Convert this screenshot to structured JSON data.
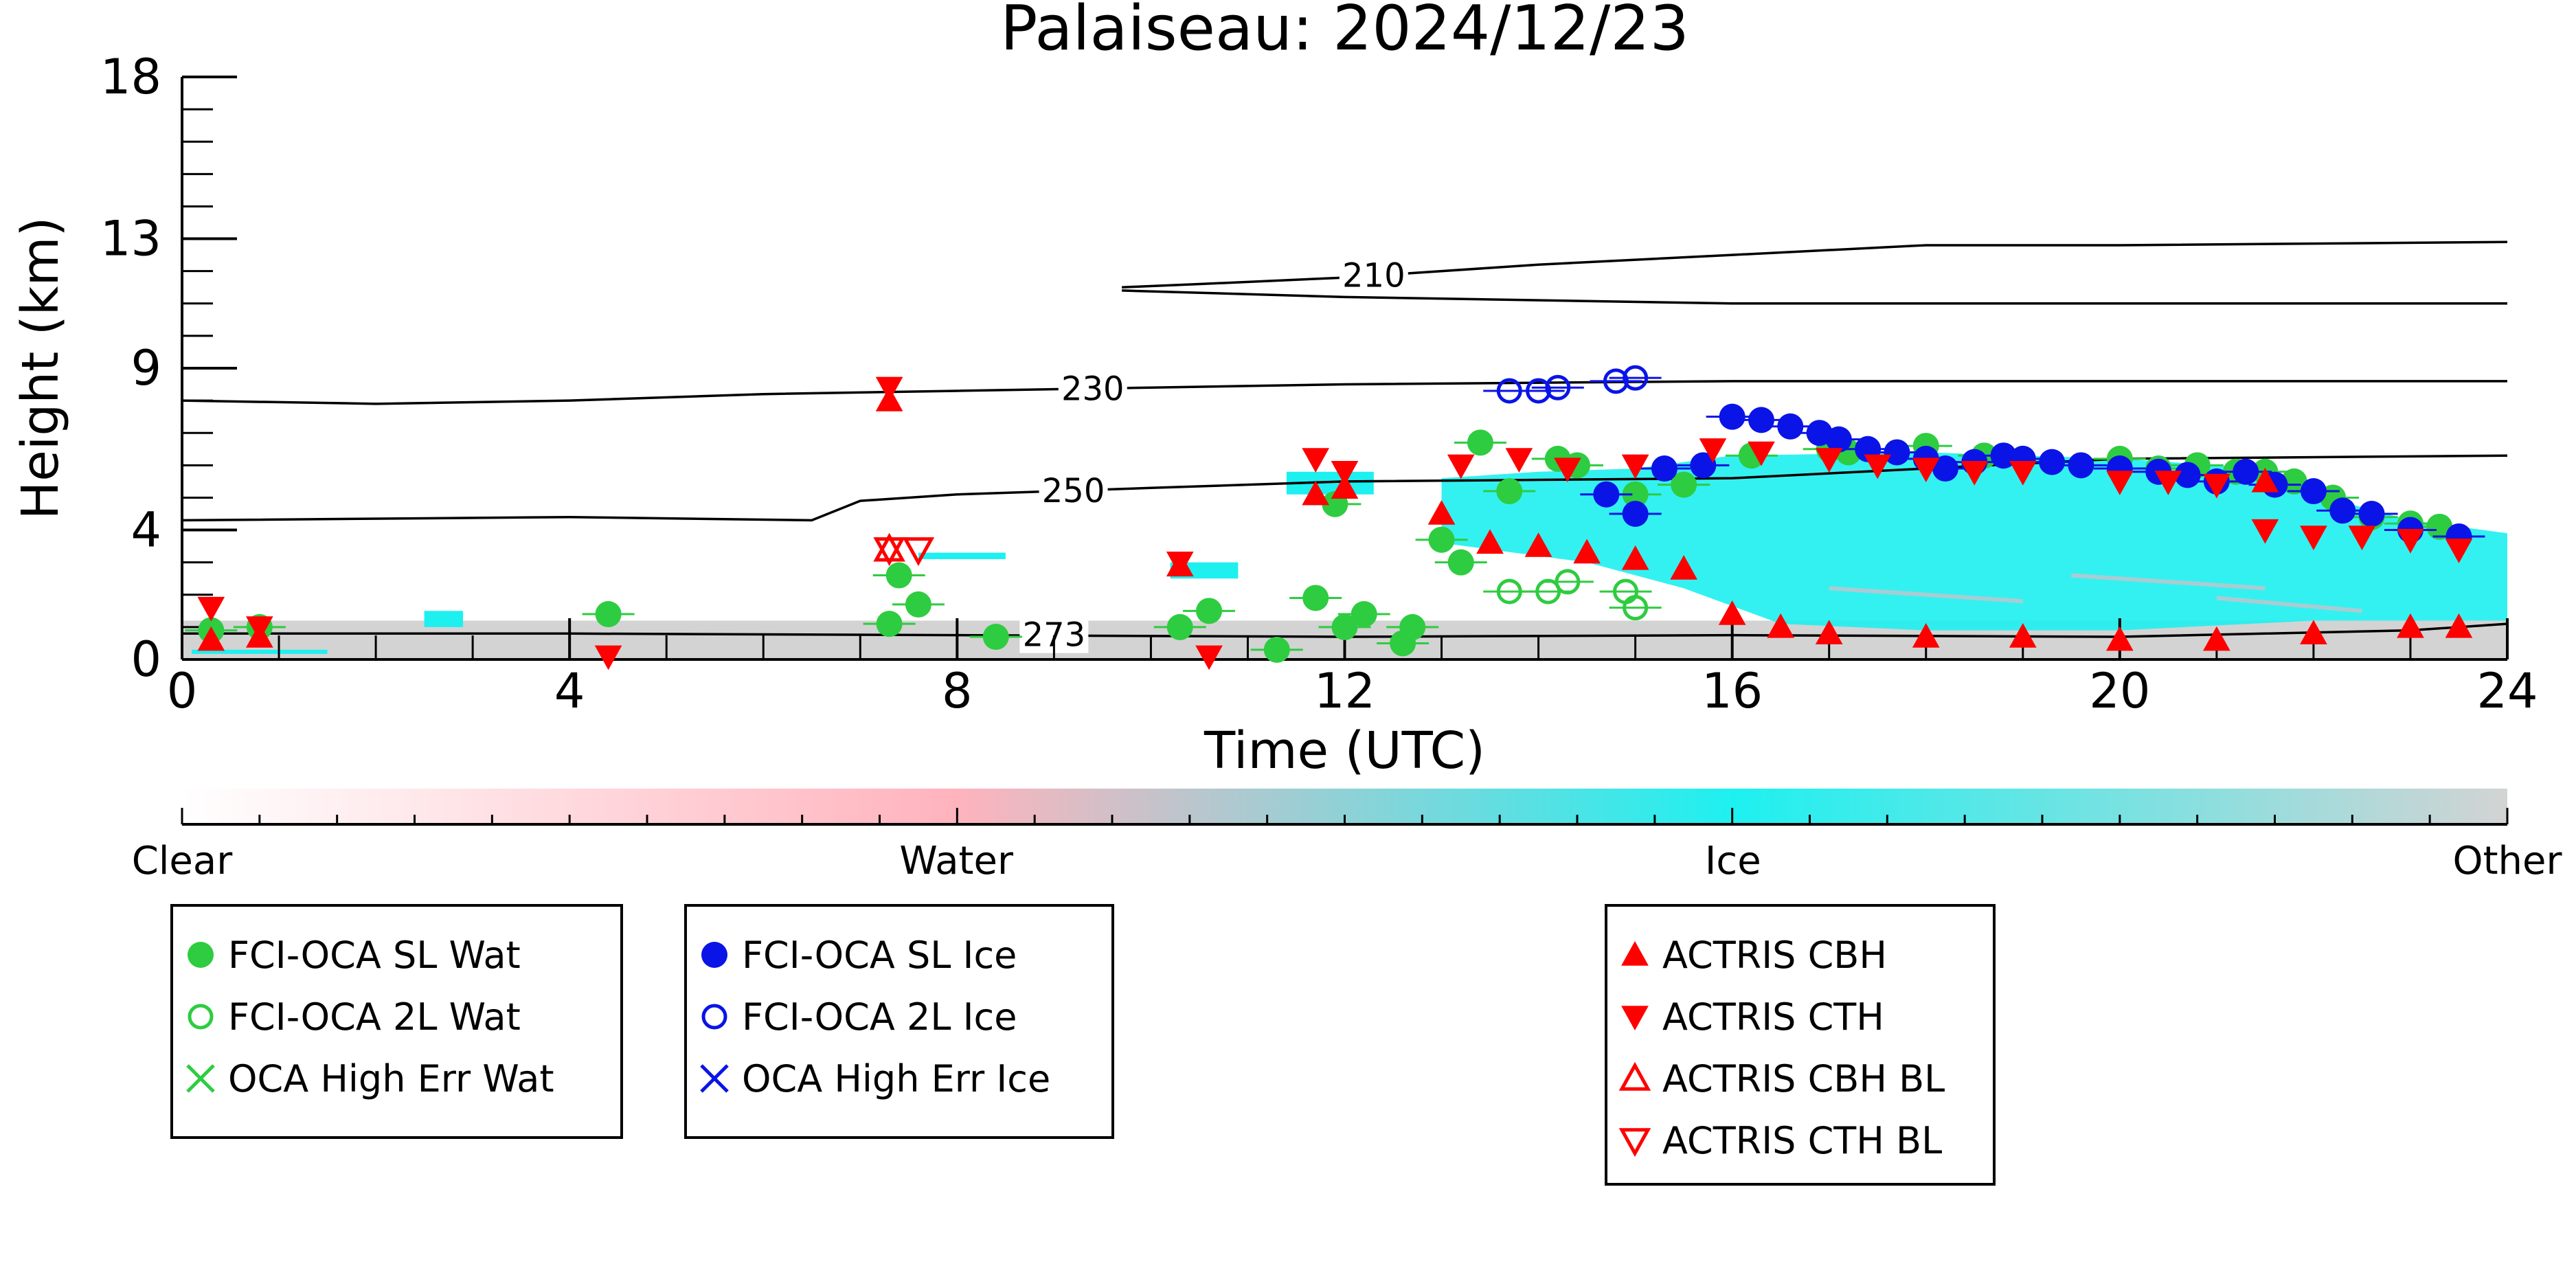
{
  "chart_data": {
    "type": "scatter",
    "title": "Palaiseau: 2024/12/23",
    "xlabel": "Time (UTC)",
    "ylabel": "Height (km)",
    "xlim": [
      0,
      24
    ],
    "ylim": [
      0,
      18
    ],
    "x_ticks": [
      0,
      4,
      8,
      12,
      16,
      20,
      24
    ],
    "y_ticks": [
      0,
      4,
      9,
      13,
      18
    ],
    "colorbar": {
      "labels": [
        "Clear",
        "Water",
        "Ice",
        "Other"
      ],
      "colors": [
        "#ffffff",
        "#ffb3bd",
        "#1ef0f0",
        "#d3d3d3"
      ]
    },
    "contours": [
      {
        "label": "273",
        "points": [
          [
            0,
            0.8
          ],
          [
            4,
            0.8
          ],
          [
            8,
            0.75
          ],
          [
            12,
            0.7
          ],
          [
            16,
            0.75
          ],
          [
            20,
            0.7
          ],
          [
            23,
            0.9
          ],
          [
            24,
            1.1
          ]
        ]
      },
      {
        "label": "250",
        "points": [
          [
            0,
            4.3
          ],
          [
            4,
            4.4
          ],
          [
            6.5,
            4.3
          ],
          [
            7,
            4.9
          ],
          [
            8,
            5.1
          ],
          [
            10,
            5.3
          ],
          [
            12,
            5.5
          ],
          [
            16,
            5.6
          ],
          [
            20,
            6.2
          ],
          [
            24,
            6.3
          ]
        ]
      },
      {
        "label": "230",
        "points": [
          [
            0,
            8.0
          ],
          [
            2,
            7.9
          ],
          [
            4,
            8.0
          ],
          [
            6,
            8.2
          ],
          [
            8,
            8.3
          ],
          [
            10,
            8.4
          ],
          [
            12,
            8.5
          ],
          [
            16,
            8.6
          ],
          [
            20,
            8.6
          ],
          [
            24,
            8.6
          ]
        ]
      },
      {
        "label": "210",
        "points": [
          [
            9.7,
            11.5
          ],
          [
            10.5,
            11.6
          ],
          [
            12,
            11.8
          ],
          [
            14,
            12.2
          ],
          [
            16,
            12.5
          ],
          [
            18,
            12.8
          ],
          [
            20,
            12.8
          ],
          [
            24,
            12.9
          ]
        ]
      },
      {
        "label": "",
        "points": [
          [
            9.7,
            11.4
          ],
          [
            12,
            11.2
          ],
          [
            16,
            11.0
          ],
          [
            20,
            11.0
          ],
          [
            24,
            11.0
          ]
        ]
      }
    ],
    "series": [
      {
        "name": "FCI-OCA SL Wat",
        "marker": "filled-circle",
        "color": "#2ecc40",
        "points": [
          [
            0.3,
            0.9
          ],
          [
            0.8,
            1.0
          ],
          [
            4.4,
            1.4
          ],
          [
            7.3,
            1.1
          ],
          [
            7.4,
            2.6
          ],
          [
            7.6,
            1.7
          ],
          [
            8.4,
            0.7
          ],
          [
            10.3,
            1.0
          ],
          [
            10.6,
            1.5
          ],
          [
            11.3,
            0.3
          ],
          [
            11.7,
            1.9
          ],
          [
            11.9,
            4.8
          ],
          [
            12.0,
            1.0
          ],
          [
            12.2,
            1.4
          ],
          [
            12.6,
            0.5
          ],
          [
            12.7,
            1.0
          ],
          [
            13.0,
            3.7
          ],
          [
            13.2,
            3.0
          ],
          [
            13.4,
            6.7
          ],
          [
            13.7,
            5.2
          ],
          [
            14.2,
            6.2
          ],
          [
            14.4,
            6.0
          ],
          [
            15.0,
            5.1
          ],
          [
            15.5,
            5.4
          ],
          [
            16.2,
            6.3
          ],
          [
            17.0,
            6.5
          ],
          [
            17.2,
            6.4
          ],
          [
            18.0,
            6.6
          ],
          [
            18.6,
            6.3
          ],
          [
            19.0,
            6.2
          ],
          [
            20.0,
            6.2
          ],
          [
            20.4,
            5.9
          ],
          [
            20.8,
            6.0
          ],
          [
            21.2,
            5.8
          ],
          [
            21.5,
            5.8
          ],
          [
            21.8,
            5.5
          ],
          [
            22.2,
            5.0
          ],
          [
            22.6,
            4.4
          ],
          [
            23.0,
            4.2
          ],
          [
            23.3,
            4.1
          ]
        ]
      },
      {
        "name": "FCI-OCA 2L Wat",
        "marker": "open-circle",
        "color": "#2ecc40",
        "points": [
          [
            13.7,
            2.1
          ],
          [
            14.1,
            2.1
          ],
          [
            14.3,
            2.4
          ],
          [
            14.9,
            2.1
          ],
          [
            15.0,
            1.6
          ]
        ]
      },
      {
        "name": "OCA High Err Wat",
        "marker": "x",
        "color": "#2ecc40",
        "points": []
      },
      {
        "name": "FCI-OCA SL Ice",
        "marker": "filled-circle",
        "color": "#0a14e6",
        "points": [
          [
            14.7,
            5.1
          ],
          [
            15.0,
            4.5
          ],
          [
            15.3,
            5.9
          ],
          [
            15.7,
            6.0
          ],
          [
            16.0,
            7.5
          ],
          [
            16.3,
            7.4
          ],
          [
            16.6,
            7.2
          ],
          [
            16.9,
            7.0
          ],
          [
            17.1,
            6.8
          ],
          [
            17.4,
            6.5
          ],
          [
            17.7,
            6.4
          ],
          [
            18.0,
            6.2
          ],
          [
            18.2,
            5.9
          ],
          [
            18.5,
            6.1
          ],
          [
            18.8,
            6.3
          ],
          [
            19.0,
            6.2
          ],
          [
            19.3,
            6.1
          ],
          [
            19.6,
            6.0
          ],
          [
            20.0,
            5.9
          ],
          [
            20.4,
            5.8
          ],
          [
            20.7,
            5.7
          ],
          [
            21.0,
            5.5
          ],
          [
            21.3,
            5.8
          ],
          [
            21.6,
            5.4
          ],
          [
            22.0,
            5.2
          ],
          [
            22.3,
            4.6
          ],
          [
            22.6,
            4.5
          ],
          [
            23.0,
            4.0
          ],
          [
            23.5,
            3.8
          ]
        ]
      },
      {
        "name": "FCI-OCA 2L Ice",
        "marker": "open-circle",
        "color": "#0a14e6",
        "points": [
          [
            13.7,
            8.3
          ],
          [
            14.0,
            8.3
          ],
          [
            14.2,
            8.4
          ],
          [
            14.8,
            8.6
          ],
          [
            15.0,
            8.7
          ]
        ]
      },
      {
        "name": "OCA High Err Ice",
        "marker": "x",
        "color": "#0a14e6",
        "points": []
      },
      {
        "name": "ACTRIS CBH",
        "marker": "triangle-up",
        "color": "#ff0000",
        "points": [
          [
            0.3,
            0.6
          ],
          [
            0.8,
            0.7
          ],
          [
            7.3,
            8.0
          ],
          [
            10.3,
            2.9
          ],
          [
            11.7,
            5.1
          ],
          [
            12.0,
            5.3
          ],
          [
            13.0,
            4.5
          ],
          [
            13.5,
            3.6
          ],
          [
            14.0,
            3.5
          ],
          [
            14.5,
            3.3
          ],
          [
            15.0,
            3.1
          ],
          [
            15.5,
            2.8
          ],
          [
            16.0,
            1.4
          ],
          [
            16.5,
            1.0
          ],
          [
            17.0,
            0.8
          ],
          [
            18.0,
            0.7
          ],
          [
            19.0,
            0.7
          ],
          [
            20.0,
            0.6
          ],
          [
            21.0,
            0.6
          ],
          [
            21.5,
            5.5
          ],
          [
            22.0,
            0.8
          ],
          [
            23.0,
            1.0
          ],
          [
            23.5,
            1.0
          ]
        ]
      },
      {
        "name": "ACTRIS CTH",
        "marker": "triangle-down",
        "color": "#ff0000",
        "points": [
          [
            0.3,
            1.6
          ],
          [
            0.8,
            1.0
          ],
          [
            4.4,
            0.1
          ],
          [
            7.3,
            8.4
          ],
          [
            10.3,
            3.0
          ],
          [
            10.6,
            0.1
          ],
          [
            11.7,
            6.2
          ],
          [
            12.0,
            5.8
          ],
          [
            13.2,
            6.0
          ],
          [
            13.8,
            6.2
          ],
          [
            14.3,
            5.9
          ],
          [
            15.0,
            6.0
          ],
          [
            15.8,
            6.5
          ],
          [
            16.3,
            6.4
          ],
          [
            17.0,
            6.2
          ],
          [
            17.5,
            6.0
          ],
          [
            18.0,
            5.9
          ],
          [
            18.5,
            5.8
          ],
          [
            19.0,
            5.8
          ],
          [
            20.0,
            5.5
          ],
          [
            20.5,
            5.5
          ],
          [
            21.0,
            5.4
          ],
          [
            21.5,
            4.0
          ],
          [
            22.0,
            3.8
          ],
          [
            22.5,
            3.8
          ],
          [
            23.0,
            3.7
          ],
          [
            23.5,
            3.4
          ]
        ]
      },
      {
        "name": "ACTRIS CBH BL",
        "marker": "open-triangle-up",
        "color": "#ff0000",
        "points": [
          [
            7.3,
            3.4
          ]
        ]
      },
      {
        "name": "ACTRIS CTH BL",
        "marker": "open-triangle-down",
        "color": "#ff0000",
        "points": [
          [
            7.3,
            3.4
          ],
          [
            7.6,
            3.4
          ]
        ]
      }
    ],
    "legend_groups": [
      [
        "FCI-OCA SL Wat",
        "FCI-OCA 2L Wat",
        "OCA High Err Wat"
      ],
      [
        "FCI-OCA SL Ice",
        "FCI-OCA 2L Ice",
        "OCA High Err Ice"
      ],
      [
        "ACTRIS CBH",
        "ACTRIS CTH",
        "ACTRIS CBH BL",
        "ACTRIS CTH BL"
      ]
    ],
    "legend_placement": "bottom"
  }
}
